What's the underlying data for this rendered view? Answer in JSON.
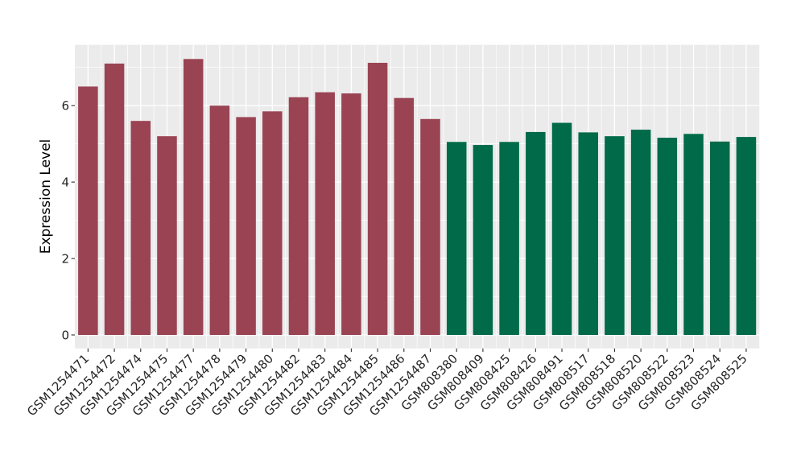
{
  "chart_data": {
    "type": "bar",
    "title": "",
    "xlabel": "",
    "ylabel": "Expression Level",
    "ylim": [
      -0.36,
      7.58
    ],
    "yticks": [
      0,
      2,
      4,
      6
    ],
    "yticks_minor": [
      1,
      3,
      5,
      7
    ],
    "grid": true,
    "legend_position": "none",
    "panel_bg": "#EBEBEB",
    "grid_color": "#FFFFFF",
    "tick_color": "#333333",
    "tick_label_color": "#262626",
    "groups": {
      "maroon": "#9A4453",
      "green": "#006A49"
    },
    "bars": [
      {
        "label": "GSM1254471",
        "value": 6.5,
        "group": "maroon"
      },
      {
        "label": "GSM1254472",
        "value": 7.1,
        "group": "maroon"
      },
      {
        "label": "GSM1254474",
        "value": 5.6,
        "group": "maroon"
      },
      {
        "label": "GSM1254475",
        "value": 5.2,
        "group": "maroon"
      },
      {
        "label": "GSM1254477",
        "value": 7.22,
        "group": "maroon"
      },
      {
        "label": "GSM1254478",
        "value": 6.0,
        "group": "maroon"
      },
      {
        "label": "GSM1254479",
        "value": 5.7,
        "group": "maroon"
      },
      {
        "label": "GSM1254480",
        "value": 5.85,
        "group": "maroon"
      },
      {
        "label": "GSM1254482",
        "value": 6.22,
        "group": "maroon"
      },
      {
        "label": "GSM1254483",
        "value": 6.35,
        "group": "maroon"
      },
      {
        "label": "GSM1254484",
        "value": 6.32,
        "group": "maroon"
      },
      {
        "label": "GSM1254485",
        "value": 7.12,
        "group": "maroon"
      },
      {
        "label": "GSM1254486",
        "value": 6.2,
        "group": "maroon"
      },
      {
        "label": "GSM1254487",
        "value": 5.65,
        "group": "maroon"
      },
      {
        "label": "GSM808380",
        "value": 5.05,
        "group": "green"
      },
      {
        "label": "GSM808409",
        "value": 4.97,
        "group": "green"
      },
      {
        "label": "GSM808425",
        "value": 5.05,
        "group": "green"
      },
      {
        "label": "GSM808426",
        "value": 5.31,
        "group": "green"
      },
      {
        "label": "GSM808491",
        "value": 5.55,
        "group": "green"
      },
      {
        "label": "GSM808517",
        "value": 5.3,
        "group": "green"
      },
      {
        "label": "GSM808518",
        "value": 5.2,
        "group": "green"
      },
      {
        "label": "GSM808520",
        "value": 5.37,
        "group": "green"
      },
      {
        "label": "GSM808522",
        "value": 5.16,
        "group": "green"
      },
      {
        "label": "GSM808523",
        "value": 5.26,
        "group": "green"
      },
      {
        "label": "GSM808524",
        "value": 5.06,
        "group": "green"
      },
      {
        "label": "GSM808525",
        "value": 5.18,
        "group": "green"
      }
    ]
  }
}
